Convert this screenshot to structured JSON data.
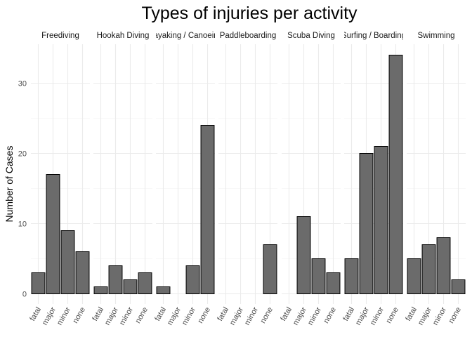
{
  "chart_data": {
    "type": "bar",
    "title": "Types of injuries per activity",
    "xlabel": "",
    "ylabel": "Number of Cases",
    "ylim": [
      0,
      35
    ],
    "yticks": [
      0,
      10,
      20,
      30
    ],
    "grid": true,
    "categories": [
      "fatal",
      "major",
      "minor",
      "none"
    ],
    "bar_color": "#6b6b6b",
    "bar_edge_color": "#000000",
    "facets": [
      {
        "name": "Freediving",
        "values": [
          3,
          17,
          9,
          6
        ]
      },
      {
        "name": "Hookah Diving",
        "values": [
          1,
          4,
          2,
          3
        ]
      },
      {
        "name": "Kayaking / Canoeing",
        "values": [
          1,
          0,
          4,
          24
        ]
      },
      {
        "name": "Paddleboarding",
        "values": [
          0,
          0,
          0,
          7
        ]
      },
      {
        "name": "Scuba Diving",
        "values": [
          0,
          11,
          5,
          3
        ]
      },
      {
        "name": "Surfing / Boarding",
        "values": [
          5,
          20,
          21,
          34
        ]
      },
      {
        "name": "Swimming",
        "values": [
          5,
          7,
          8,
          2
        ]
      }
    ]
  }
}
